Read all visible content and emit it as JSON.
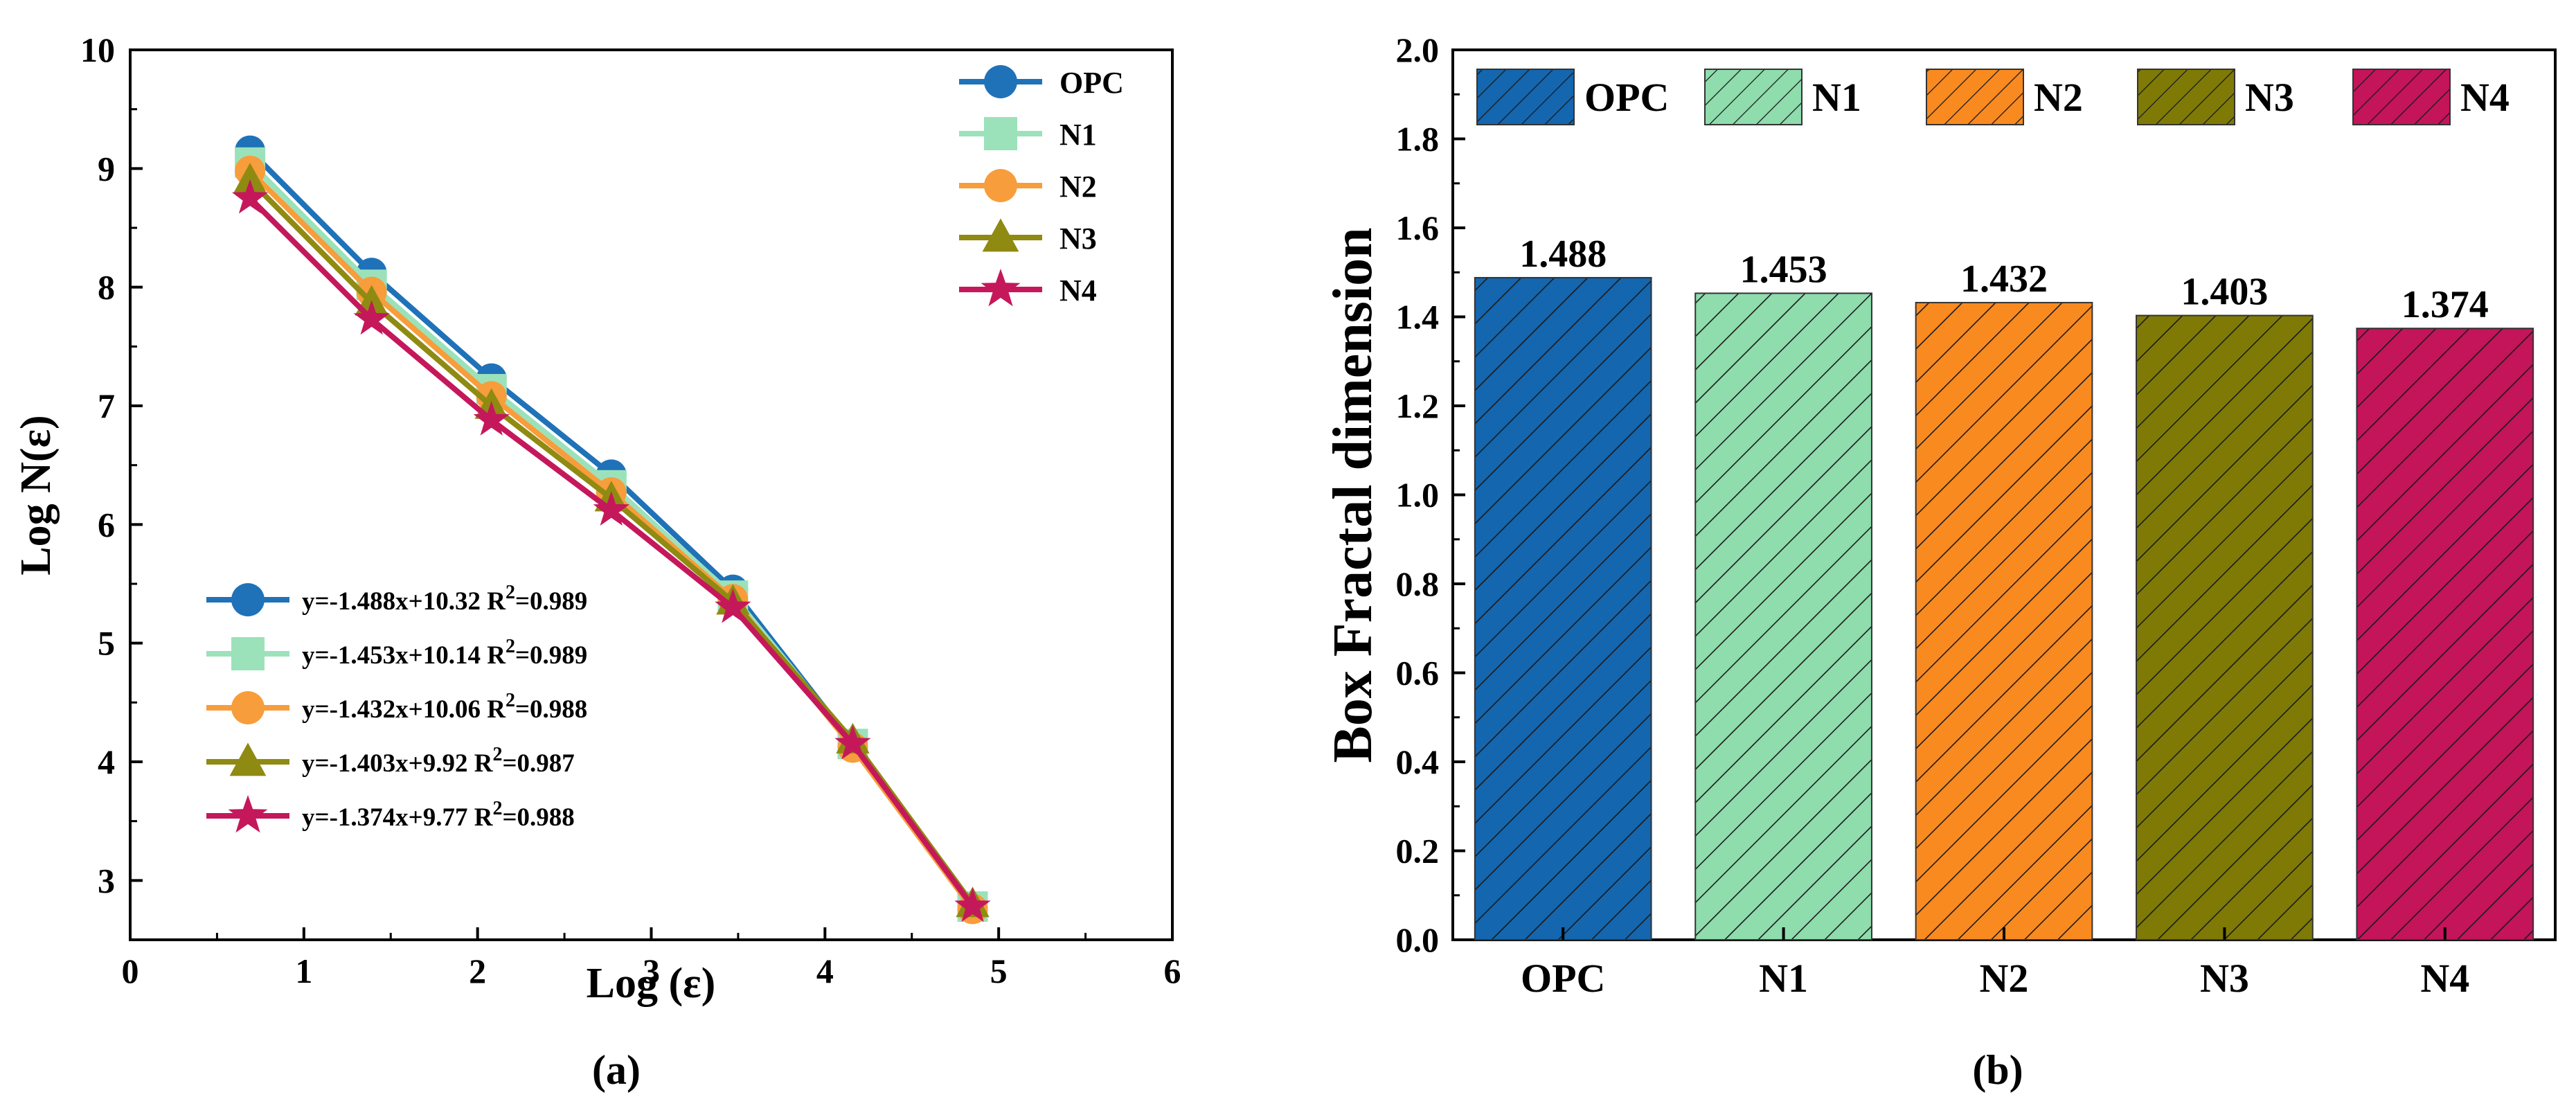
{
  "chart_data": [
    {
      "type": "line",
      "panel_label": "(a)",
      "title": "",
      "xlabel": "Log (ε)",
      "ylabel": "Log N(ε)",
      "xlim": [
        0,
        6
      ],
      "ylim": [
        2.5,
        10
      ],
      "xticks": [
        "0",
        "1",
        "2",
        "3",
        "4",
        "5",
        "6"
      ],
      "yticks": [
        "3",
        "4",
        "5",
        "6",
        "7",
        "8",
        "9",
        "10"
      ],
      "x": [
        0.69,
        1.39,
        2.08,
        2.77,
        3.47,
        4.16,
        4.85
      ],
      "series": [
        {
          "name": "OPC",
          "color": "#1f72b8",
          "marker": "circle",
          "values": [
            9.15,
            8.12,
            7.23,
            6.42,
            5.45,
            4.15,
            2.78
          ]
        },
        {
          "name": "N1",
          "color": "#9be2bb",
          "marker": "square",
          "values": [
            9.05,
            8.02,
            7.14,
            6.33,
            5.4,
            4.15,
            2.78
          ]
        },
        {
          "name": "N2",
          "color": "#f79d3b",
          "marker": "circle",
          "values": [
            8.98,
            7.96,
            7.08,
            6.27,
            5.37,
            4.12,
            2.76
          ]
        },
        {
          "name": "N3",
          "color": "#8f8a12",
          "marker": "triangle",
          "values": [
            8.9,
            7.87,
            7.0,
            6.22,
            5.35,
            4.18,
            2.8
          ]
        },
        {
          "name": "N4",
          "color": "#c5185b",
          "marker": "star",
          "values": [
            8.75,
            7.73,
            6.88,
            6.12,
            5.3,
            4.15,
            2.78
          ]
        }
      ],
      "fit_legend": [
        {
          "text": "y=-1.488x+10.32  R",
          "r2": "=0.989"
        },
        {
          "text": "y=-1.453x+10.14 R",
          "r2": "=0.989"
        },
        {
          "text": "y=-1.432x+10.06 R",
          "r2": "=0.988"
        },
        {
          "text": "y=-1.403x+9.92 R",
          "r2": "=0.987"
        },
        {
          "text": "y=-1.374x+9.77 R",
          "r2": "=0.988"
        }
      ],
      "sup_2": "2"
    },
    {
      "type": "bar",
      "panel_label": "(b)",
      "title": "",
      "xlabel": "",
      "ylabel": "Box Fractal dimension",
      "ylim": [
        0,
        2.0
      ],
      "yticks": [
        "0.0",
        "0.2",
        "0.4",
        "0.6",
        "0.8",
        "1.0",
        "1.2",
        "1.4",
        "1.6",
        "1.8",
        "2.0"
      ],
      "categories": [
        "OPC",
        "N1",
        "N2",
        "N3",
        "N4"
      ],
      "values": [
        1.488,
        1.453,
        1.432,
        1.403,
        1.374
      ],
      "value_labels": [
        "1.488",
        "1.453",
        "1.432",
        "1.403",
        "1.374"
      ],
      "colors": [
        "#1466ae",
        "#8fdcad",
        "#f98a20",
        "#7e7a05",
        "#c4145a"
      ],
      "legend": [
        "OPC",
        "N1",
        "N2",
        "N3",
        "N4"
      ]
    }
  ]
}
